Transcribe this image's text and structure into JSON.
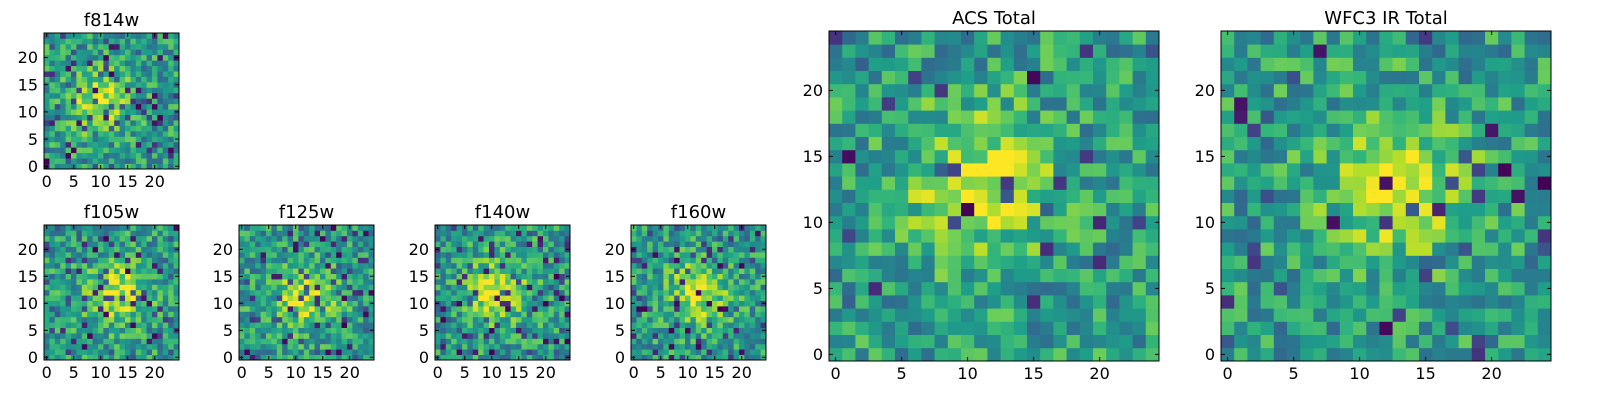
{
  "chart_data": {
    "type": "heatmap",
    "colormap": "viridis",
    "grid": false,
    "panels": [
      {
        "id": "f814w",
        "title": "f814w",
        "xlim": [
          -0.5,
          24.5
        ],
        "ylim": [
          -0.5,
          24.5
        ],
        "xticks": [
          0,
          5,
          10,
          15,
          20
        ],
        "yticks": [
          0,
          5,
          10,
          15,
          20
        ],
        "xticklabels": [
          "0",
          "5",
          "10",
          "15",
          "20"
        ],
        "yticklabels": [
          "0",
          "5",
          "10",
          "15",
          "20"
        ],
        "xlabel": "",
        "ylabel": "",
        "pixels_per_side": 25,
        "bright_center": [
          10,
          12
        ],
        "dark_pixel_fraction": 0.12,
        "seed": 814
      },
      {
        "id": "f105w",
        "title": "f105w",
        "xlim": [
          -0.5,
          24.5
        ],
        "ylim": [
          -0.5,
          24.5
        ],
        "xticks": [
          0,
          5,
          10,
          15,
          20
        ],
        "yticks": [
          0,
          5,
          10,
          15,
          20
        ],
        "xticklabels": [
          "0",
          "5",
          "10",
          "15",
          "20"
        ],
        "yticklabels": [
          "0",
          "5",
          "10",
          "15",
          "20"
        ],
        "xlabel": "",
        "ylabel": "",
        "pixels_per_side": 25,
        "bright_center": [
          13,
          12
        ],
        "dark_pixel_fraction": 0.1,
        "seed": 105
      },
      {
        "id": "f125w",
        "title": "f125w",
        "xlim": [
          -0.5,
          24.5
        ],
        "ylim": [
          -0.5,
          24.5
        ],
        "xticks": [
          0,
          5,
          10,
          15,
          20
        ],
        "yticks": [
          0,
          5,
          10,
          15,
          20
        ],
        "xticklabels": [
          "0",
          "5",
          "10",
          "15",
          "20"
        ],
        "yticklabels": [
          "0",
          "5",
          "10",
          "15",
          "20"
        ],
        "xlabel": "",
        "ylabel": "",
        "pixels_per_side": 25,
        "bright_center": [
          12,
          11
        ],
        "dark_pixel_fraction": 0.12,
        "seed": 125
      },
      {
        "id": "f140w",
        "title": "f140w",
        "xlim": [
          -0.5,
          24.5
        ],
        "ylim": [
          -0.5,
          24.5
        ],
        "xticks": [
          0,
          5,
          10,
          15,
          20
        ],
        "yticks": [
          0,
          5,
          10,
          15,
          20
        ],
        "xticklabels": [
          "0",
          "5",
          "10",
          "15",
          "20"
        ],
        "yticklabels": [
          "0",
          "5",
          "10",
          "15",
          "20"
        ],
        "xlabel": "",
        "ylabel": "",
        "pixels_per_side": 25,
        "bright_center": [
          11,
          12
        ],
        "dark_pixel_fraction": 0.12,
        "seed": 140
      },
      {
        "id": "f160w",
        "title": "f160w",
        "xlim": [
          -0.5,
          24.5
        ],
        "ylim": [
          -0.5,
          24.5
        ],
        "xticks": [
          0,
          5,
          10,
          15,
          20
        ],
        "yticks": [
          0,
          5,
          10,
          15,
          20
        ],
        "xticklabels": [
          "0",
          "5",
          "10",
          "15",
          "20"
        ],
        "yticklabels": [
          "0",
          "5",
          "10",
          "15",
          "20"
        ],
        "xlabel": "",
        "ylabel": "",
        "pixels_per_side": 25,
        "bright_center": [
          12,
          12
        ],
        "dark_pixel_fraction": 0.1,
        "seed": 160
      },
      {
        "id": "acs-total",
        "title": "ACS Total",
        "xlim": [
          -0.5,
          24.5
        ],
        "ylim": [
          -0.5,
          24.5
        ],
        "xticks": [
          0,
          5,
          10,
          15,
          20
        ],
        "yticks": [
          0,
          5,
          10,
          15,
          20
        ],
        "xticklabels": [
          "0",
          "5",
          "10",
          "15",
          "20"
        ],
        "yticklabels": [
          "0",
          "5",
          "10",
          "15",
          "20"
        ],
        "xlabel": "",
        "ylabel": "",
        "pixels_per_side": 25,
        "bright_center": [
          11,
          13
        ],
        "dark_pixel_fraction": 0.05,
        "seed": 999
      },
      {
        "id": "wfc3-ir-total",
        "title": "WFC3 IR Total",
        "xlim": [
          -0.5,
          24.5
        ],
        "ylim": [
          -0.5,
          24.5
        ],
        "xticks": [
          0,
          5,
          10,
          15,
          20
        ],
        "yticks": [
          0,
          5,
          10,
          15,
          20
        ],
        "xticklabels": [
          "0",
          "5",
          "10",
          "15",
          "20"
        ],
        "yticklabels": [
          "0",
          "5",
          "10",
          "15",
          "20"
        ],
        "xlabel": "",
        "ylabel": "",
        "pixels_per_side": 25,
        "bright_center": [
          13,
          13
        ],
        "dark_pixel_fraction": 0.06,
        "seed": 3
      }
    ]
  },
  "colors": {
    "viridis_stops": [
      "#440154",
      "#482878",
      "#3e4a89",
      "#31688e",
      "#26828e",
      "#1f9e89",
      "#35b779",
      "#6ece58",
      "#b5de2b",
      "#fde725"
    ],
    "axes_frame": "#000000",
    "background": "#ffffff"
  }
}
